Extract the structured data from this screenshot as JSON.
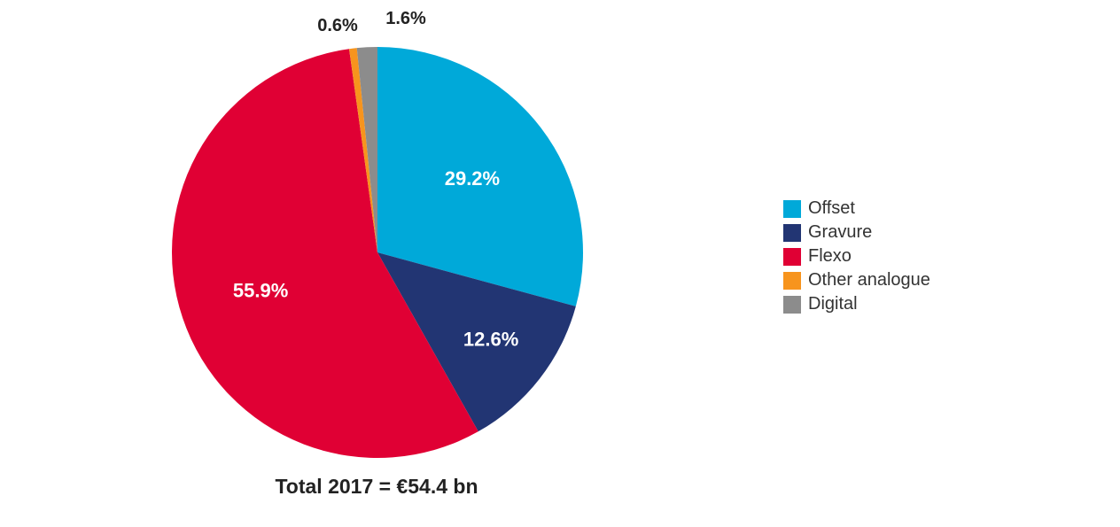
{
  "chart_data": {
    "type": "pie",
    "caption": "Total 2017 = €54.4 bn",
    "slices": [
      {
        "name": "Offset",
        "value": 29.2,
        "label": "29.2%",
        "color": "#00a9d9"
      },
      {
        "name": "Gravure",
        "value": 12.6,
        "label": "12.6%",
        "color": "#223573"
      },
      {
        "name": "Flexo",
        "value": 55.9,
        "label": "55.9%",
        "color": "#e00034"
      },
      {
        "name": "Other analogue",
        "value": 0.6,
        "label": "0.6%",
        "color": "#f7941d"
      },
      {
        "name": "Digital",
        "value": 1.6,
        "label": "1.6%",
        "color": "#8c8c8c"
      }
    ],
    "legend_position": "right"
  }
}
